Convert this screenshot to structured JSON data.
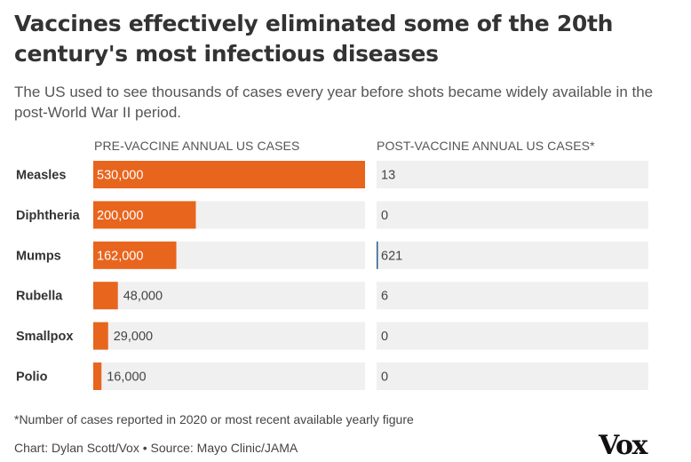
{
  "title": "Vaccines effectively eliminated some of the 20th century's most infectious diseases",
  "subtitle": "The US used to see thousands of cases every year before shots became widely available in the post-World War II period.",
  "colors": {
    "pre_bar": "#e8651e",
    "post_bar": "#2a5b8c",
    "track": "#f0f0f0"
  },
  "chart_data": {
    "type": "bar",
    "categories": [
      "Measles",
      "Diphtheria",
      "Mumps",
      "Rubella",
      "Smallpox",
      "Polio"
    ],
    "series": [
      {
        "name": "PRE-VACCINE ANNUAL US CASES",
        "values": [
          530000,
          200000,
          162000,
          48000,
          29000,
          16000
        ],
        "labels": [
          "530,000",
          "200,000",
          "162,000",
          "48,000",
          "29,000",
          "16,000"
        ]
      },
      {
        "name": "POST-VACCINE ANNUAL US CASES*",
        "values": [
          13,
          0,
          621,
          6,
          0,
          0
        ],
        "labels": [
          "13",
          "0",
          "621",
          "6",
          "0",
          "0"
        ]
      }
    ],
    "xlim": [
      0,
      530000
    ]
  },
  "footnote": "*Number of cases reported in 2020 or most recent available yearly figure",
  "credit": "Chart: Dylan Scott/Vox • Source: Mayo Clinic/JAMA",
  "logo": "Vox"
}
